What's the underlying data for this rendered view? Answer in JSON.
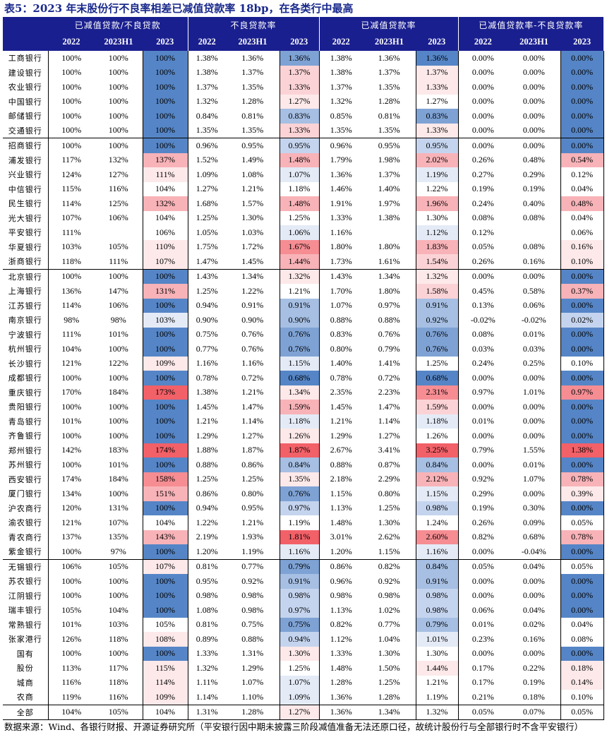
{
  "title": "表5：2023 年末股份行不良率相差已减值贷款率 18bp，在各类行中最高",
  "groups": [
    "已减值贷款/不良贷款",
    "不良贷款率",
    "已减值贷款率",
    "已减值贷款率-不良贷款率"
  ],
  "years": [
    "2022",
    "2023H1",
    "2023"
  ],
  "group_starts": [
    0,
    6,
    15,
    35,
    45
  ],
  "rows": [
    {
      "name": "工商银行",
      "v": [
        "100%",
        "100%",
        "100%",
        "1.38%",
        "1.36%",
        "1.36%",
        "1.38%",
        "1.36%",
        "1.36%",
        "0.00%",
        "0.00%",
        "0.00%"
      ],
      "h": [
        "b5",
        "b4",
        "b5",
        "b5"
      ]
    },
    {
      "name": "建设银行",
      "v": [
        "100%",
        "100%",
        "100%",
        "1.38%",
        "1.37%",
        "1.37%",
        "1.38%",
        "1.37%",
        "1.37%",
        "0.00%",
        "0.00%",
        "0.00%"
      ],
      "h": [
        "b5",
        "r1",
        "p1",
        "b5"
      ]
    },
    {
      "name": "农业银行",
      "v": [
        "100%",
        "100%",
        "100%",
        "1.37%",
        "1.35%",
        "1.33%",
        "1.37%",
        "1.35%",
        "1.33%",
        "0.00%",
        "0.00%",
        "0.00%"
      ],
      "h": [
        "b5",
        "r1",
        "p1",
        "b5"
      ]
    },
    {
      "name": "中国银行",
      "v": [
        "100%",
        "100%",
        "100%",
        "1.32%",
        "1.28%",
        "1.27%",
        "1.32%",
        "1.28%",
        "1.27%",
        "0.00%",
        "0.00%",
        "0.00%"
      ],
      "h": [
        "b5",
        "p1",
        "w",
        "b5"
      ]
    },
    {
      "name": "邮储银行",
      "v": [
        "100%",
        "100%",
        "100%",
        "0.84%",
        "0.81%",
        "0.83%",
        "0.85%",
        "0.81%",
        "0.83%",
        "0.00%",
        "0.00%",
        "0.00%"
      ],
      "h": [
        "b5",
        "b3",
        "b4",
        "b5"
      ]
    },
    {
      "name": "交通银行",
      "v": [
        "100%",
        "100%",
        "100%",
        "1.35%",
        "1.35%",
        "1.33%",
        "1.35%",
        "1.35%",
        "1.33%",
        "0.00%",
        "0.00%",
        "0.00%"
      ],
      "h": [
        "b5",
        "r1",
        "p1",
        "b5"
      ]
    },
    {
      "name": "招商银行",
      "v": [
        "100%",
        "100%",
        "100%",
        "0.96%",
        "0.95%",
        "0.95%",
        "0.96%",
        "0.95%",
        "0.95%",
        "0.00%",
        "0.00%",
        "0.00%"
      ],
      "h": [
        "b5",
        "b2",
        "b2",
        "b5"
      ]
    },
    {
      "name": "浦发银行",
      "v": [
        "117%",
        "132%",
        "137%",
        "1.52%",
        "1.49%",
        "1.48%",
        "1.79%",
        "1.98%",
        "2.02%",
        "0.26%",
        "0.48%",
        "0.54%"
      ],
      "h": [
        "r2",
        "r2",
        "r2",
        "r2"
      ]
    },
    {
      "name": "兴业银行",
      "v": [
        "124%",
        "127%",
        "111%",
        "1.09%",
        "1.08%",
        "1.07%",
        "1.36%",
        "1.37%",
        "1.19%",
        "0.27%",
        "0.29%",
        "0.12%"
      ],
      "h": [
        "p1",
        "b1",
        "b1",
        "w"
      ]
    },
    {
      "name": "中信银行",
      "v": [
        "115%",
        "116%",
        "104%",
        "1.27%",
        "1.21%",
        "1.18%",
        "1.46%",
        "1.40%",
        "1.22%",
        "0.19%",
        "0.19%",
        "0.04%"
      ],
      "h": [
        "w",
        "w",
        "w",
        "w"
      ]
    },
    {
      "name": "民生银行",
      "v": [
        "114%",
        "125%",
        "132%",
        "1.68%",
        "1.57%",
        "1.48%",
        "1.91%",
        "1.97%",
        "1.96%",
        "0.24%",
        "0.40%",
        "0.48%"
      ],
      "h": [
        "r2",
        "r2",
        "r2",
        "r2"
      ]
    },
    {
      "name": "光大银行",
      "v": [
        "107%",
        "106%",
        "104%",
        "1.25%",
        "1.30%",
        "1.25%",
        "1.33%",
        "1.38%",
        "1.30%",
        "0.08%",
        "0.08%",
        "0.04%"
      ],
      "h": [
        "w",
        "w",
        "w",
        "w"
      ]
    },
    {
      "name": "平安银行",
      "v": [
        "111%",
        "",
        "106%",
        "1.05%",
        "1.03%",
        "1.06%",
        "1.16%",
        "",
        "1.12%",
        "0.12%",
        "",
        "0.06%"
      ],
      "h": [
        "w",
        "b1",
        "b1",
        "w"
      ]
    },
    {
      "name": "华夏银行",
      "v": [
        "103%",
        "105%",
        "110%",
        "1.75%",
        "1.72%",
        "1.67%",
        "1.80%",
        "1.80%",
        "1.83%",
        "0.05%",
        "0.08%",
        "0.16%"
      ],
      "h": [
        "p1",
        "r3",
        "r2",
        "p1"
      ]
    },
    {
      "name": "浙商银行",
      "v": [
        "118%",
        "111%",
        "107%",
        "1.47%",
        "1.45%",
        "1.44%",
        "1.73%",
        "1.61%",
        "1.54%",
        "0.26%",
        "0.16%",
        "0.10%"
      ],
      "h": [
        "p1",
        "r2",
        "r1",
        "p1"
      ]
    },
    {
      "name": "北京银行",
      "v": [
        "100%",
        "100%",
        "100%",
        "1.43%",
        "1.34%",
        "1.32%",
        "1.43%",
        "1.34%",
        "1.32%",
        "0.00%",
        "0.00%",
        "0.00%"
      ],
      "h": [
        "b5",
        "p1",
        "p1",
        "b5"
      ]
    },
    {
      "name": "上海银行",
      "v": [
        "136%",
        "147%",
        "131%",
        "1.25%",
        "1.22%",
        "1.21%",
        "1.70%",
        "1.80%",
        "1.58%",
        "0.45%",
        "0.58%",
        "0.37%"
      ],
      "h": [
        "r2",
        "w",
        "r1",
        "r2"
      ]
    },
    {
      "name": "江苏银行",
      "v": [
        "114%",
        "106%",
        "100%",
        "0.94%",
        "0.91%",
        "0.91%",
        "1.07%",
        "0.97%",
        "0.91%",
        "0.13%",
        "0.06%",
        "0.00%"
      ],
      "h": [
        "b5",
        "b3",
        "b3",
        "b5"
      ]
    },
    {
      "name": "南京银行",
      "v": [
        "98%",
        "98%",
        "103%",
        "0.90%",
        "0.90%",
        "0.90%",
        "0.88%",
        "0.88%",
        "0.92%",
        "-0.02%",
        "-0.02%",
        "0.02%"
      ],
      "h": [
        "b1",
        "b3",
        "b3",
        "b2"
      ]
    },
    {
      "name": "宁波银行",
      "v": [
        "111%",
        "101%",
        "100%",
        "0.75%",
        "0.76%",
        "0.76%",
        "0.83%",
        "0.76%",
        "0.76%",
        "0.08%",
        "0.01%",
        "0.00%"
      ],
      "h": [
        "b5",
        "b4",
        "b4",
        "b5"
      ]
    },
    {
      "name": "杭州银行",
      "v": [
        "104%",
        "100%",
        "100%",
        "0.77%",
        "0.76%",
        "0.76%",
        "0.80%",
        "0.79%",
        "0.76%",
        "0.03%",
        "0.03%",
        "0.00%"
      ],
      "h": [
        "b5",
        "b4",
        "b4",
        "b5"
      ]
    },
    {
      "name": "长沙银行",
      "v": [
        "121%",
        "122%",
        "109%",
        "1.16%",
        "1.16%",
        "1.15%",
        "1.40%",
        "1.41%",
        "1.25%",
        "0.24%",
        "0.25%",
        "0.10%"
      ],
      "h": [
        "p1",
        "b1",
        "w",
        "w"
      ]
    },
    {
      "name": "成都银行",
      "v": [
        "100%",
        "100%",
        "100%",
        "0.78%",
        "0.72%",
        "0.68%",
        "0.78%",
        "0.72%",
        "0.68%",
        "0.00%",
        "0.00%",
        "0.00%"
      ],
      "h": [
        "b5",
        "b5",
        "b5",
        "b5"
      ]
    },
    {
      "name": "重庆银行",
      "v": [
        "170%",
        "184%",
        "173%",
        "1.38%",
        "1.21%",
        "1.34%",
        "2.35%",
        "2.23%",
        "2.31%",
        "0.97%",
        "1.01%",
        "0.97%"
      ],
      "h": [
        "r4",
        "p1",
        "r3",
        "r3"
      ]
    },
    {
      "name": "贵阳银行",
      "v": [
        "100%",
        "100%",
        "100%",
        "1.45%",
        "1.47%",
        "1.59%",
        "1.45%",
        "1.47%",
        "1.59%",
        "0.00%",
        "0.00%",
        "0.00%"
      ],
      "h": [
        "b5",
        "r2",
        "r1",
        "b5"
      ]
    },
    {
      "name": "青岛银行",
      "v": [
        "101%",
        "100%",
        "100%",
        "1.21%",
        "1.14%",
        "1.18%",
        "1.21%",
        "1.14%",
        "1.18%",
        "0.01%",
        "0.00%",
        "0.00%"
      ],
      "h": [
        "b5",
        "b1",
        "b1",
        "b5"
      ]
    },
    {
      "name": "齐鲁银行",
      "v": [
        "100%",
        "100%",
        "100%",
        "1.29%",
        "1.27%",
        "1.26%",
        "1.29%",
        "1.27%",
        "1.26%",
        "0.00%",
        "0.00%",
        "0.00%"
      ],
      "h": [
        "b5",
        "p1",
        "w",
        "b5"
      ]
    },
    {
      "name": "郑州银行",
      "v": [
        "142%",
        "183%",
        "174%",
        "1.88%",
        "1.87%",
        "1.87%",
        "2.67%",
        "3.41%",
        "3.25%",
        "0.79%",
        "1.55%",
        "1.38%"
      ],
      "h": [
        "r4",
        "r4",
        "r4",
        "r4"
      ]
    },
    {
      "name": "苏州银行",
      "v": [
        "100%",
        "101%",
        "100%",
        "0.88%",
        "0.86%",
        "0.84%",
        "0.88%",
        "0.87%",
        "0.84%",
        "0.00%",
        "0.01%",
        "0.00%"
      ],
      "h": [
        "b5",
        "b3",
        "b3",
        "b5"
      ]
    },
    {
      "name": "西安银行",
      "v": [
        "174%",
        "184%",
        "158%",
        "1.25%",
        "1.25%",
        "1.35%",
        "2.18%",
        "2.29%",
        "2.12%",
        "0.92%",
        "1.07%",
        "0.78%"
      ],
      "h": [
        "r3",
        "p1",
        "r2",
        "r2"
      ]
    },
    {
      "name": "厦门银行",
      "v": [
        "134%",
        "100%",
        "151%",
        "0.86%",
        "0.80%",
        "0.76%",
        "1.15%",
        "0.80%",
        "1.15%",
        "0.29%",
        "0.00%",
        "0.39%"
      ],
      "h": [
        "r2",
        "b4",
        "b1",
        "p1"
      ]
    },
    {
      "name": "沪农商行",
      "v": [
        "120%",
        "131%",
        "100%",
        "0.94%",
        "0.95%",
        "0.97%",
        "1.13%",
        "1.25%",
        "0.98%",
        "0.19%",
        "0.30%",
        "0.00%"
      ],
      "h": [
        "b5",
        "b2",
        "b2",
        "b5"
      ]
    },
    {
      "name": "渝农银行",
      "v": [
        "121%",
        "107%",
        "104%",
        "1.22%",
        "1.21%",
        "1.19%",
        "1.48%",
        "1.30%",
        "1.24%",
        "0.26%",
        "0.09%",
        "0.05%"
      ],
      "h": [
        "w",
        "w",
        "w",
        "w"
      ]
    },
    {
      "name": "青农商行",
      "v": [
        "137%",
        "135%",
        "143%",
        "2.19%",
        "1.93%",
        "1.81%",
        "3.01%",
        "2.62%",
        "2.60%",
        "0.82%",
        "0.68%",
        "0.78%"
      ],
      "h": [
        "r2",
        "r4",
        "r3",
        "r2"
      ]
    },
    {
      "name": "紫金银行",
      "v": [
        "100%",
        "97%",
        "100%",
        "1.20%",
        "1.19%",
        "1.16%",
        "1.20%",
        "1.15%",
        "1.16%",
        "0.00%",
        "-0.04%",
        "0.00%"
      ],
      "h": [
        "b5",
        "b1",
        "b1",
        "b5"
      ]
    },
    {
      "name": "无锡银行",
      "v": [
        "106%",
        "105%",
        "107%",
        "0.81%",
        "0.77%",
        "0.79%",
        "0.86%",
        "0.82%",
        "0.84%",
        "0.05%",
        "0.04%",
        "0.05%"
      ],
      "h": [
        "p1",
        "b4",
        "b3",
        "w"
      ]
    },
    {
      "name": "苏农银行",
      "v": [
        "100%",
        "100%",
        "100%",
        "0.95%",
        "0.92%",
        "0.91%",
        "0.96%",
        "0.92%",
        "0.91%",
        "0.00%",
        "0.00%",
        "0.00%"
      ],
      "h": [
        "b5",
        "b3",
        "b3",
        "b5"
      ]
    },
    {
      "name": "江阴银行",
      "v": [
        "100%",
        "100%",
        "100%",
        "0.98%",
        "0.98%",
        "0.98%",
        "0.98%",
        "0.98%",
        "0.98%",
        "0.00%",
        "0.00%",
        "0.00%"
      ],
      "h": [
        "b5",
        "b2",
        "b2",
        "b5"
      ]
    },
    {
      "name": "瑞丰银行",
      "v": [
        "105%",
        "104%",
        "100%",
        "1.08%",
        "0.98%",
        "0.97%",
        "1.13%",
        "1.02%",
        "0.98%",
        "0.06%",
        "0.04%",
        "0.00%"
      ],
      "h": [
        "b5",
        "b2",
        "b2",
        "b5"
      ]
    },
    {
      "name": "常熟银行",
      "v": [
        "101%",
        "103%",
        "105%",
        "0.81%",
        "0.75%",
        "0.75%",
        "0.82%",
        "0.77%",
        "0.79%",
        "0.01%",
        "0.02%",
        "0.04%"
      ],
      "h": [
        "w",
        "b4",
        "b3",
        "w"
      ]
    },
    {
      "name": "张家港行",
      "v": [
        "126%",
        "118%",
        "108%",
        "0.89%",
        "0.88%",
        "0.94%",
        "1.12%",
        "1.04%",
        "1.01%",
        "0.23%",
        "0.16%",
        "0.08%"
      ],
      "h": [
        "p1",
        "b2",
        "b1",
        "w"
      ]
    },
    {
      "name": "国有",
      "v": [
        "100%",
        "100%",
        "100%",
        "1.33%",
        "1.31%",
        "1.30%",
        "1.33%",
        "1.30%",
        "1.30%",
        "0.00%",
        "0.00%",
        "0.00%"
      ],
      "h": [
        "b5",
        "p1",
        "w",
        "b5"
      ]
    },
    {
      "name": "股份",
      "v": [
        "113%",
        "117%",
        "115%",
        "1.32%",
        "1.29%",
        "1.25%",
        "1.48%",
        "1.50%",
        "1.44%",
        "0.17%",
        "0.22%",
        "0.18%"
      ],
      "h": [
        "p1",
        "w",
        "p1",
        "p1"
      ]
    },
    {
      "name": "城商",
      "v": [
        "116%",
        "118%",
        "114%",
        "1.11%",
        "1.07%",
        "1.07%",
        "1.28%",
        "1.25%",
        "1.21%",
        "0.17%",
        "0.19%",
        "0.14%"
      ],
      "h": [
        "p1",
        "b1",
        "w",
        "p1"
      ]
    },
    {
      "name": "农商",
      "v": [
        "119%",
        "116%",
        "109%",
        "1.14%",
        "1.10%",
        "1.09%",
        "1.36%",
        "1.28%",
        "1.19%",
        "0.21%",
        "0.18%",
        "0.10%"
      ],
      "h": [
        "p1",
        "b1",
        "w",
        "w"
      ]
    },
    {
      "name": "全部",
      "v": [
        "104%",
        "105%",
        "104%",
        "1.31%",
        "1.28%",
        "1.27%",
        "1.36%",
        "1.34%",
        "1.32%",
        "0.05%",
        "0.07%",
        "0.05%"
      ],
      "h": [
        "w",
        "p1",
        "w",
        "w"
      ]
    }
  ],
  "footnote": "数据来源：Wind、各银行财报、开源证券研究所（平安银行因中期未披露三阶段减值准备无法还原口径，故统计股份行与全部银行时不含平安银行）",
  "colors": {
    "header_bg": "#1a1f8f",
    "title": "#1a2a8c",
    "b5": "#5585c6",
    "b4": "#7ea2d4",
    "b3": "#a6bfe3",
    "b2": "#c5d4ee",
    "b1": "#e4ebf7",
    "w": "#ffffff",
    "p1": "#fde9ea",
    "r1": "#fbd3d6",
    "r2": "#f8b3b8",
    "r3": "#f58d93",
    "r4": "#f26068"
  }
}
